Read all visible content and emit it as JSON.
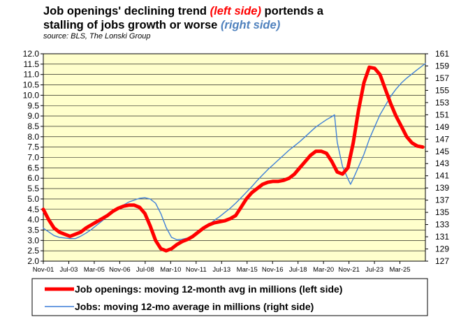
{
  "title": {
    "line1_part1": "Job openings' declining trend ",
    "line1_part2": "(left side)",
    "line1_part3": " portends a",
    "line2_part1": "stalling of jobs growth or worse ",
    "line2_part2": "(right side)"
  },
  "source": "source: BLS, The Lonski Group",
  "colors": {
    "plot_background": "#ffffcc",
    "openings_line": "#ff0000",
    "jobs_line": "#3f7fd9"
  },
  "chart_data": {
    "type": "line",
    "x_range": [
      "2001-11",
      "2025-09"
    ],
    "x_tick_labels": [
      "Nov-01",
      "Jul-03",
      "Mar-05",
      "Nov-06",
      "Jul-08",
      "Mar-10",
      "Nov-11",
      "Jul-13",
      "Mar-15",
      "Nov-16",
      "Jul-18",
      "Mar-20",
      "Nov-21",
      "Jul-23",
      "Mar-25"
    ],
    "y_left": {
      "min": 2.0,
      "max": 12.0,
      "step": 0.5,
      "tick_labels": [
        "2.0",
        "2.5",
        "3.0",
        "3.5",
        "4.0",
        "4.5",
        "5.0",
        "5.5",
        "6.0",
        "6.5",
        "7.0",
        "7.5",
        "8.0",
        "8.5",
        "9.0",
        "9.5",
        "10.0",
        "10.5",
        "11.0",
        "11.5",
        "12.0"
      ]
    },
    "y_right": {
      "min": 127,
      "max": 161,
      "step": 2,
      "tick_labels": [
        "127",
        "129",
        "131",
        "133",
        "135",
        "137",
        "139",
        "141",
        "143",
        "145",
        "147",
        "149",
        "151",
        "153",
        "155",
        "157",
        "159",
        "161"
      ]
    },
    "grid": true,
    "legend_placement": "bottom",
    "series": [
      {
        "name": "Job openings: moving 12-month avg in millions (left side)",
        "axis": "left",
        "points": [
          [
            "2001-11",
            4.5
          ],
          [
            "2002-03",
            4.0
          ],
          [
            "2002-07",
            3.6
          ],
          [
            "2002-11",
            3.4
          ],
          [
            "2003-03",
            3.3
          ],
          [
            "2003-07",
            3.2
          ],
          [
            "2003-11",
            3.3
          ],
          [
            "2004-03",
            3.4
          ],
          [
            "2004-07",
            3.6
          ],
          [
            "2004-11",
            3.75
          ],
          [
            "2005-03",
            3.9
          ],
          [
            "2005-07",
            4.05
          ],
          [
            "2005-11",
            4.2
          ],
          [
            "2006-03",
            4.4
          ],
          [
            "2006-07",
            4.55
          ],
          [
            "2006-11",
            4.65
          ],
          [
            "2007-03",
            4.7
          ],
          [
            "2007-07",
            4.7
          ],
          [
            "2007-11",
            4.6
          ],
          [
            "2008-03",
            4.3
          ],
          [
            "2008-07",
            3.7
          ],
          [
            "2008-11",
            3.0
          ],
          [
            "2009-03",
            2.6
          ],
          [
            "2009-07",
            2.5
          ],
          [
            "2009-11",
            2.6
          ],
          [
            "2010-03",
            2.8
          ],
          [
            "2010-07",
            2.95
          ],
          [
            "2010-11",
            3.05
          ],
          [
            "2011-03",
            3.2
          ],
          [
            "2011-07",
            3.4
          ],
          [
            "2011-11",
            3.6
          ],
          [
            "2012-03",
            3.75
          ],
          [
            "2012-07",
            3.85
          ],
          [
            "2012-11",
            3.9
          ],
          [
            "2013-03",
            3.95
          ],
          [
            "2013-07",
            4.05
          ],
          [
            "2013-11",
            4.2
          ],
          [
            "2014-03",
            4.6
          ],
          [
            "2014-07",
            5.0
          ],
          [
            "2014-11",
            5.3
          ],
          [
            "2015-03",
            5.5
          ],
          [
            "2015-07",
            5.7
          ],
          [
            "2015-11",
            5.8
          ],
          [
            "2016-03",
            5.85
          ],
          [
            "2016-07",
            5.85
          ],
          [
            "2016-11",
            5.9
          ],
          [
            "2017-03",
            6.0
          ],
          [
            "2017-07",
            6.2
          ],
          [
            "2017-11",
            6.5
          ],
          [
            "2018-03",
            6.8
          ],
          [
            "2018-07",
            7.1
          ],
          [
            "2018-11",
            7.3
          ],
          [
            "2019-03",
            7.3
          ],
          [
            "2019-07",
            7.2
          ],
          [
            "2019-11",
            6.8
          ],
          [
            "2020-03",
            6.3
          ],
          [
            "2020-07",
            6.2
          ],
          [
            "2020-11",
            6.5
          ],
          [
            "2021-03",
            7.7
          ],
          [
            "2021-07",
            9.3
          ],
          [
            "2021-11",
            10.6
          ],
          [
            "2022-03",
            11.35
          ],
          [
            "2022-07",
            11.3
          ],
          [
            "2022-11",
            11.0
          ],
          [
            "2023-03",
            10.3
          ],
          [
            "2023-07",
            9.6
          ],
          [
            "2023-11",
            9.0
          ],
          [
            "2024-03",
            8.5
          ],
          [
            "2024-07",
            8.0
          ],
          [
            "2024-11",
            7.7
          ],
          [
            "2025-03",
            7.55
          ],
          [
            "2025-07",
            7.5
          ]
        ]
      },
      {
        "name": "Jobs: moving 12-mo average in millions (right side)",
        "axis": "right",
        "points": [
          [
            "2001-11",
            132.4
          ],
          [
            "2002-03",
            131.8
          ],
          [
            "2002-07",
            131.2
          ],
          [
            "2002-11",
            130.9
          ],
          [
            "2003-03",
            130.8
          ],
          [
            "2003-07",
            130.7
          ],
          [
            "2003-11",
            130.7
          ],
          [
            "2004-03",
            131.1
          ],
          [
            "2004-07",
            131.6
          ],
          [
            "2004-11",
            132.2
          ],
          [
            "2005-03",
            132.9
          ],
          [
            "2005-07",
            133.6
          ],
          [
            "2005-11",
            134.3
          ],
          [
            "2006-03",
            135.0
          ],
          [
            "2006-07",
            135.7
          ],
          [
            "2006-11",
            136.2
          ],
          [
            "2007-03",
            136.7
          ],
          [
            "2007-07",
            137.0
          ],
          [
            "2007-11",
            137.3
          ],
          [
            "2008-03",
            137.4
          ],
          [
            "2008-07",
            137.2
          ],
          [
            "2008-11",
            136.5
          ],
          [
            "2009-03",
            134.8
          ],
          [
            "2009-07",
            132.5
          ],
          [
            "2009-11",
            130.9
          ],
          [
            "2010-03",
            130.5
          ],
          [
            "2010-07",
            130.6
          ],
          [
            "2010-11",
            130.8
          ],
          [
            "2011-03",
            131.2
          ],
          [
            "2011-07",
            131.7
          ],
          [
            "2011-11",
            132.3
          ],
          [
            "2012-03",
            133.0
          ],
          [
            "2012-07",
            133.7
          ],
          [
            "2012-11",
            134.3
          ],
          [
            "2013-03",
            135.0
          ],
          [
            "2013-07",
            135.7
          ],
          [
            "2013-11",
            136.5
          ],
          [
            "2014-03",
            137.4
          ],
          [
            "2014-07",
            138.3
          ],
          [
            "2014-11",
            139.2
          ],
          [
            "2015-03",
            140.2
          ],
          [
            "2015-07",
            141.1
          ],
          [
            "2015-11",
            142.0
          ],
          [
            "2016-03",
            142.8
          ],
          [
            "2016-07",
            143.6
          ],
          [
            "2016-11",
            144.4
          ],
          [
            "2017-03",
            145.2
          ],
          [
            "2017-07",
            145.9
          ],
          [
            "2017-11",
            146.6
          ],
          [
            "2018-03",
            147.4
          ],
          [
            "2018-07",
            148.2
          ],
          [
            "2018-11",
            149.0
          ],
          [
            "2019-03",
            149.6
          ],
          [
            "2019-07",
            150.2
          ],
          [
            "2019-11",
            150.7
          ],
          [
            "2020-01",
            151.0
          ],
          [
            "2020-03",
            146.5
          ],
          [
            "2020-07",
            142.5
          ],
          [
            "2020-11",
            140.5
          ],
          [
            "2021-01",
            139.6
          ],
          [
            "2021-03",
            140.5
          ],
          [
            "2021-07",
            142.5
          ],
          [
            "2021-11",
            144.5
          ],
          [
            "2022-03",
            147.0
          ],
          [
            "2022-07",
            149.0
          ],
          [
            "2022-11",
            151.0
          ],
          [
            "2023-03",
            152.5
          ],
          [
            "2023-07",
            154.0
          ],
          [
            "2023-11",
            155.2
          ],
          [
            "2024-03",
            156.2
          ],
          [
            "2024-07",
            157.0
          ],
          [
            "2024-11",
            157.7
          ],
          [
            "2025-03",
            158.4
          ],
          [
            "2025-09",
            159.4
          ]
        ]
      }
    ]
  }
}
